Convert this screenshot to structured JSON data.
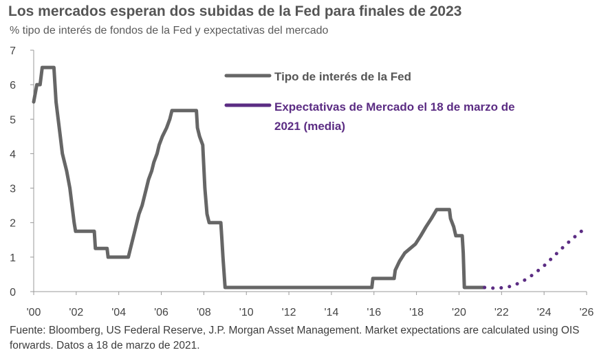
{
  "chart_data": {
    "type": "line",
    "title": "Los mercados esperan dos subidas de la Fed para finales de 2023",
    "subtitle": "% tipo de interés de fondos de la Fed y expectativas del mercado",
    "footer": "Fuente: Bloomberg, US Federal Reserve, J.P. Morgan Asset Management. Market expectations are calculated using OIS forwards. Datos a 18 de marzo de 2021.",
    "xlabel": "",
    "ylabel": "",
    "xlim": [
      2000,
      2026
    ],
    "ylim": [
      0,
      7
    ],
    "y_ticks": [
      0,
      1,
      2,
      3,
      4,
      5,
      6,
      7
    ],
    "x_ticks": [
      {
        "value": 2000,
        "label": "'00"
      },
      {
        "value": 2002,
        "label": "'02"
      },
      {
        "value": 2004,
        "label": "'04"
      },
      {
        "value": 2006,
        "label": "'06"
      },
      {
        "value": 2008,
        "label": "'08"
      },
      {
        "value": 2010,
        "label": "'10"
      },
      {
        "value": 2012,
        "label": "'12"
      },
      {
        "value": 2014,
        "label": "'14"
      },
      {
        "value": 2016,
        "label": "'16"
      },
      {
        "value": 2018,
        "label": "'18"
      },
      {
        "value": 2020,
        "label": "'20"
      },
      {
        "value": 2022,
        "label": "'22"
      },
      {
        "value": 2024,
        "label": "'24"
      },
      {
        "value": 2026,
        "label": "'26"
      }
    ],
    "legend_position": "top-right",
    "series": [
      {
        "name": "Tipo de interés de la Fed",
        "style": "solid",
        "color": "#666666",
        "points": [
          [
            2000.0,
            5.5
          ],
          [
            2000.15,
            6.0
          ],
          [
            2000.3,
            6.0
          ],
          [
            2000.4,
            6.5
          ],
          [
            2000.95,
            6.5
          ],
          [
            2001.05,
            5.5
          ],
          [
            2001.15,
            5.0
          ],
          [
            2001.25,
            4.5
          ],
          [
            2001.35,
            4.0
          ],
          [
            2001.45,
            3.75
          ],
          [
            2001.55,
            3.5
          ],
          [
            2001.7,
            3.0
          ],
          [
            2001.8,
            2.5
          ],
          [
            2001.9,
            2.0
          ],
          [
            2001.97,
            1.75
          ],
          [
            2002.85,
            1.75
          ],
          [
            2002.9,
            1.25
          ],
          [
            2003.45,
            1.25
          ],
          [
            2003.5,
            1.0
          ],
          [
            2004.45,
            1.0
          ],
          [
            2004.55,
            1.25
          ],
          [
            2004.65,
            1.5
          ],
          [
            2004.75,
            1.75
          ],
          [
            2004.85,
            2.0
          ],
          [
            2004.95,
            2.25
          ],
          [
            2005.1,
            2.5
          ],
          [
            2005.2,
            2.75
          ],
          [
            2005.3,
            3.0
          ],
          [
            2005.4,
            3.25
          ],
          [
            2005.55,
            3.5
          ],
          [
            2005.65,
            3.75
          ],
          [
            2005.8,
            4.0
          ],
          [
            2005.9,
            4.25
          ],
          [
            2006.05,
            4.5
          ],
          [
            2006.25,
            4.75
          ],
          [
            2006.4,
            5.0
          ],
          [
            2006.5,
            5.25
          ],
          [
            2007.65,
            5.25
          ],
          [
            2007.7,
            4.75
          ],
          [
            2007.8,
            4.5
          ],
          [
            2007.95,
            4.25
          ],
          [
            2008.05,
            3.0
          ],
          [
            2008.15,
            2.25
          ],
          [
            2008.25,
            2.0
          ],
          [
            2008.8,
            2.0
          ],
          [
            2008.85,
            1.5
          ],
          [
            2008.9,
            1.0
          ],
          [
            2009.0,
            0.12
          ],
          [
            2015.9,
            0.12
          ],
          [
            2015.95,
            0.38
          ],
          [
            2016.95,
            0.38
          ],
          [
            2017.0,
            0.62
          ],
          [
            2017.2,
            0.88
          ],
          [
            2017.45,
            1.12
          ],
          [
            2017.95,
            1.38
          ],
          [
            2018.2,
            1.62
          ],
          [
            2018.45,
            1.88
          ],
          [
            2018.7,
            2.12
          ],
          [
            2018.95,
            2.38
          ],
          [
            2019.55,
            2.38
          ],
          [
            2019.6,
            2.12
          ],
          [
            2019.75,
            1.88
          ],
          [
            2019.85,
            1.62
          ],
          [
            2020.15,
            1.62
          ],
          [
            2020.2,
            1.12
          ],
          [
            2020.25,
            0.12
          ],
          [
            2021.2,
            0.12
          ]
        ]
      },
      {
        "name": "Expectativas de Mercado el 18 de marzo de 2021 (media)",
        "style": "dotted",
        "color": "#5b2c83",
        "points": [
          [
            2021.2,
            0.12
          ],
          [
            2021.5,
            0.1
          ],
          [
            2022.0,
            0.11
          ],
          [
            2022.5,
            0.16
          ],
          [
            2023.0,
            0.3
          ],
          [
            2023.5,
            0.5
          ],
          [
            2024.0,
            0.75
          ],
          [
            2024.5,
            1.05
          ],
          [
            2025.0,
            1.35
          ],
          [
            2025.5,
            1.62
          ],
          [
            2025.95,
            1.85
          ]
        ]
      }
    ]
  }
}
